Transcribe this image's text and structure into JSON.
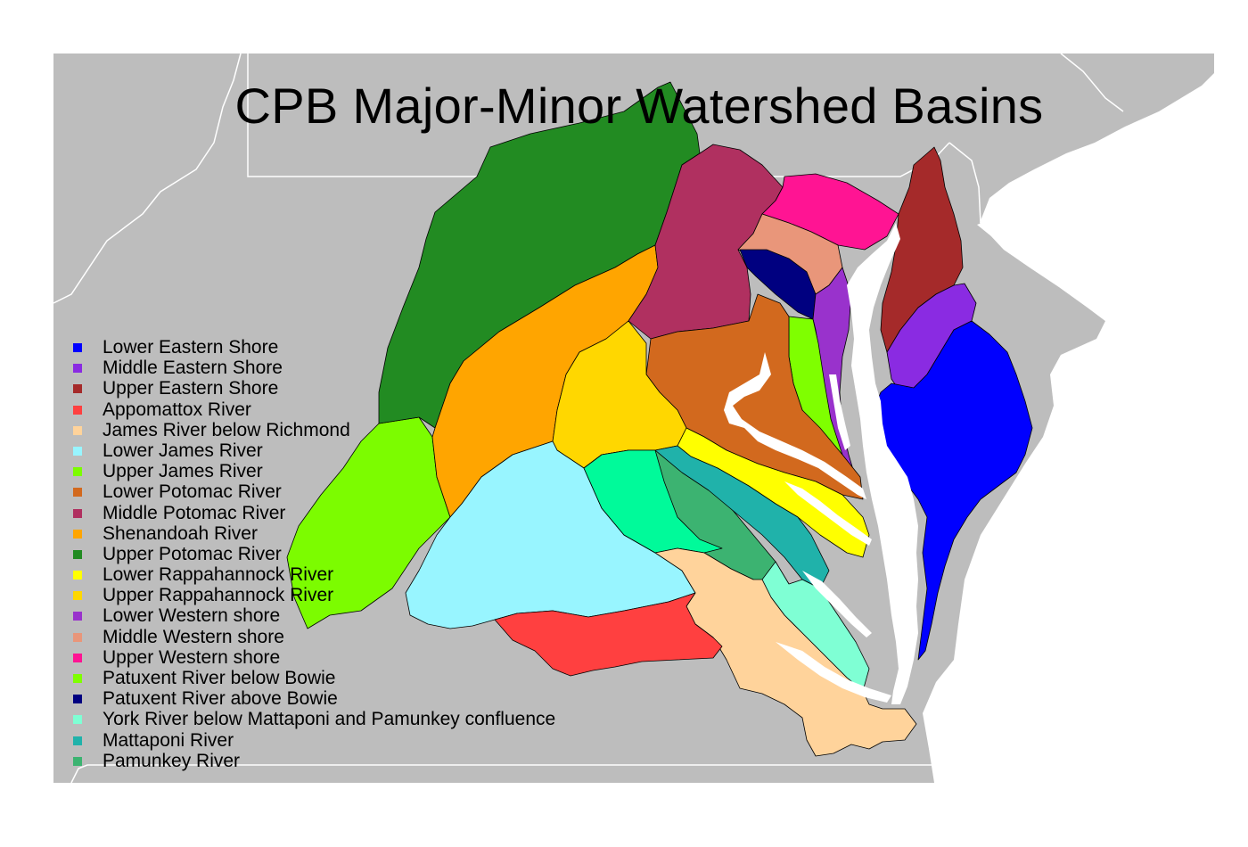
{
  "map": {
    "title": "CPB Major-Minor Watershed Basins",
    "background_color": "#bdbdbd",
    "water_color": "#ffffff",
    "border_color": "#ffffff",
    "basin_outline_color": "#000000",
    "legend": [
      {
        "label": "Lower Eastern Shore",
        "color": "#0000ff"
      },
      {
        "label": "Middle Eastern Shore",
        "color": "#8a2be2"
      },
      {
        "label": "Upper Eastern Shore",
        "color": "#a52a2a"
      },
      {
        "label": "Appomattox River",
        "color": "#ff4040"
      },
      {
        "label": "James River below Richmond",
        "color": "#ffd39b"
      },
      {
        "label": "Lower James River",
        "color": "#98f5ff"
      },
      {
        "label": "Upper James River",
        "color": "#7cfc00"
      },
      {
        "label": "Lower Potomac River",
        "color": "#d2691e"
      },
      {
        "label": "Middle Potomac River",
        "color": "#b03060"
      },
      {
        "label": "Shenandoah River",
        "color": "#ffa500"
      },
      {
        "label": "Upper Potomac River",
        "color": "#228b22"
      },
      {
        "label": "Lower Rappahannock River",
        "color": "#ffff00"
      },
      {
        "label": "Upper Rappahannock River",
        "color": "#ffd700"
      },
      {
        "label": "Lower Western shore",
        "color": "#9932cc"
      },
      {
        "label": "Middle Western shore",
        "color": "#e9967a"
      },
      {
        "label": "Upper Western shore",
        "color": "#ff1493"
      },
      {
        "label": "Patuxent River below Bowie",
        "color": "#7fff00"
      },
      {
        "label": "Patuxent River above Bowie",
        "color": "#000080"
      },
      {
        "label": "York River below Mattaponi and Pamunkey confluence",
        "color": "#7fffd4"
      },
      {
        "label": "Mattaponi River",
        "color": "#20b2aa"
      },
      {
        "label": "Pamunkey River",
        "color": "#3cb371"
      }
    ]
  }
}
